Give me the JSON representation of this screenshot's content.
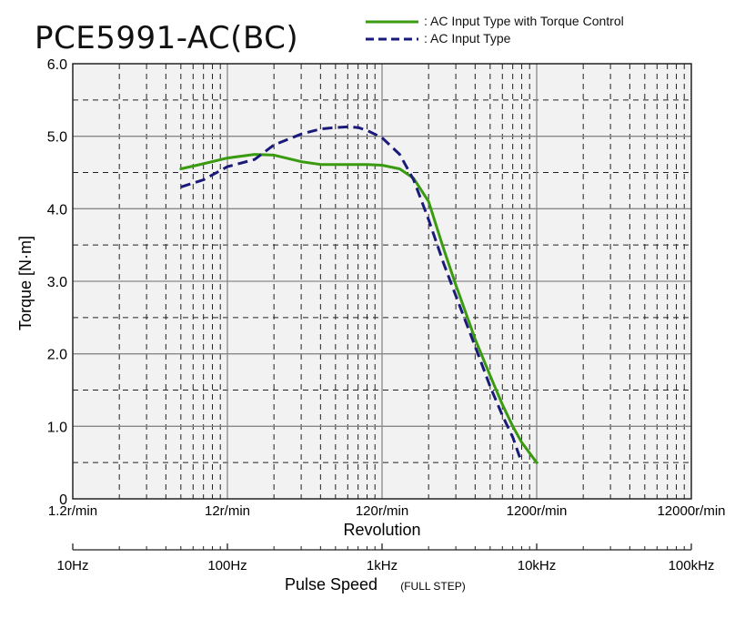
{
  "title": "PCE5991-AC(BC)",
  "legend": [
    {
      "label": ": AC Input Type with Torque Control",
      "color": "#3a9a10",
      "style": "solid"
    },
    {
      "label": ": AC Input Type",
      "color": "#1a1a7a",
      "style": "dashed"
    }
  ],
  "chart_data": {
    "type": "line",
    "title": "PCE5991-AC(BC)",
    "ylabel": "Torque [N·m]",
    "ylim": [
      0,
      6.0
    ],
    "yticks": [
      "0",
      "1.0",
      "2.0",
      "3.0",
      "4.0",
      "5.0",
      "6.0"
    ],
    "xscale": "log",
    "xlabel_revolution": "Revolution",
    "revolution_ticks": [
      "1.2r/min",
      "12r/min",
      "120r/min",
      "1200r/min",
      "12000r/min"
    ],
    "xlabel_pulse": "Pulse Speed",
    "xlabel_pulse_note": "(FULL STEP)",
    "pulse_ticks": [
      "10Hz",
      "100Hz",
      "1kHz",
      "10kHz",
      "100kHz"
    ],
    "x_unit": "Hz (pulse speed)",
    "xlim": [
      10,
      100000
    ],
    "grid": true,
    "series": [
      {
        "name": ": AC Input Type with Torque Control",
        "color": "#3a9a10",
        "style": "solid",
        "x": [
          50,
          70,
          100,
          150,
          200,
          300,
          400,
          600,
          800,
          1000,
          1300,
          1600,
          2000,
          2500,
          3000,
          4000,
          5000,
          6000,
          7000,
          8000,
          10000
        ],
        "y": [
          4.55,
          4.62,
          4.7,
          4.75,
          4.74,
          4.65,
          4.61,
          4.61,
          4.61,
          4.6,
          4.55,
          4.42,
          4.1,
          3.45,
          2.95,
          2.2,
          1.7,
          1.3,
          1.0,
          0.78,
          0.5
        ]
      },
      {
        "name": ": AC Input Type",
        "color": "#1a1a7a",
        "style": "dashed",
        "x": [
          50,
          70,
          100,
          150,
          200,
          300,
          400,
          500,
          600,
          700,
          800,
          1000,
          1300,
          1600,
          2000,
          2500,
          3000,
          4000,
          5000,
          6000,
          7000,
          8000
        ],
        "y": [
          4.3,
          4.4,
          4.58,
          4.68,
          4.88,
          5.03,
          5.1,
          5.12,
          5.13,
          5.12,
          5.08,
          4.98,
          4.75,
          4.4,
          3.85,
          3.25,
          2.8,
          2.1,
          1.55,
          1.15,
          0.85,
          0.5
        ]
      }
    ]
  }
}
